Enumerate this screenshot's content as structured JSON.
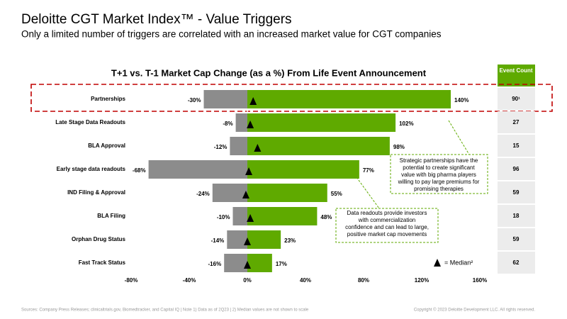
{
  "header": {
    "title": "Deloitte CGT Market Index™ - Value Triggers",
    "subtitle": "Only a limited number of triggers are correlated with an increased market value for CGT companies"
  },
  "chart_data": {
    "type": "bar",
    "orientation": "horizontal",
    "title": "T+1 vs. T-1 Market Cap Change (as a %) From Life Event Announcement",
    "categories": [
      "Partnerships",
      "Late Stage Data Readouts",
      "BLA Approval",
      "Early stage data readouts",
      "IND Filing & Approval",
      "BLA Filing",
      "Orphan Drug Status",
      "Fast Track Status"
    ],
    "series": [
      {
        "color": "#8c8c8c",
        "values": [
          -30,
          -8,
          -12,
          -68,
          -24,
          -10,
          -14,
          -16
        ],
        "value_labels": [
          "-30%",
          "-8%",
          "-12%",
          "-68%",
          "-24%",
          "-10%",
          "-14%",
          "-16%"
        ]
      },
      {
        "color": "#5faa00",
        "values": [
          140,
          102,
          98,
          77,
          55,
          48,
          23,
          17
        ],
        "value_labels": [
          "140%",
          "102%",
          "98%",
          "77%",
          "55%",
          "48%",
          "23%",
          "17%"
        ]
      },
      {
        "name": "= Median²",
        "marker": "triangle",
        "color": "#000000",
        "values": [
          4,
          2,
          7,
          1,
          -1,
          2,
          0,
          0
        ]
      }
    ],
    "xlim": [
      -80,
      160
    ],
    "xticks": [
      {
        "value": -80,
        "label": "-80%"
      },
      {
        "value": -40,
        "label": "-40%"
      },
      {
        "value": 0,
        "label": "0%"
      },
      {
        "value": 40,
        "label": "40%"
      },
      {
        "value": 80,
        "label": "80%"
      },
      {
        "value": 120,
        "label": "120%"
      },
      {
        "value": 160,
        "label": "160%"
      }
    ],
    "event_count": {
      "header": "Event Count",
      "values": [
        90,
        27,
        15,
        96,
        59,
        18,
        59,
        62
      ],
      "value_labels": [
        "90¹",
        "27",
        "15",
        "96",
        "59",
        "18",
        "59",
        "62"
      ]
    },
    "annotations": [
      [
        "Strategic partnerships have the",
        "potential to create significant",
        "value with big pharma players",
        "willing to pay large premiums for",
        "promising therapies"
      ],
      [
        "Data readouts provide investors",
        "with commercialization",
        "confidence and can lead to large,",
        "positive market cap movements"
      ]
    ]
  },
  "footer": {
    "sources": "Sources: Company Press Releases; clinicaltrials.gov, Biomedtracker, and Capital IQ | Note 1) Data as of 2Q23 | 2) Median values are not shown to scale",
    "copyright": "Copyright © 2023 Deloitte Development LLC. All rights reserved."
  }
}
